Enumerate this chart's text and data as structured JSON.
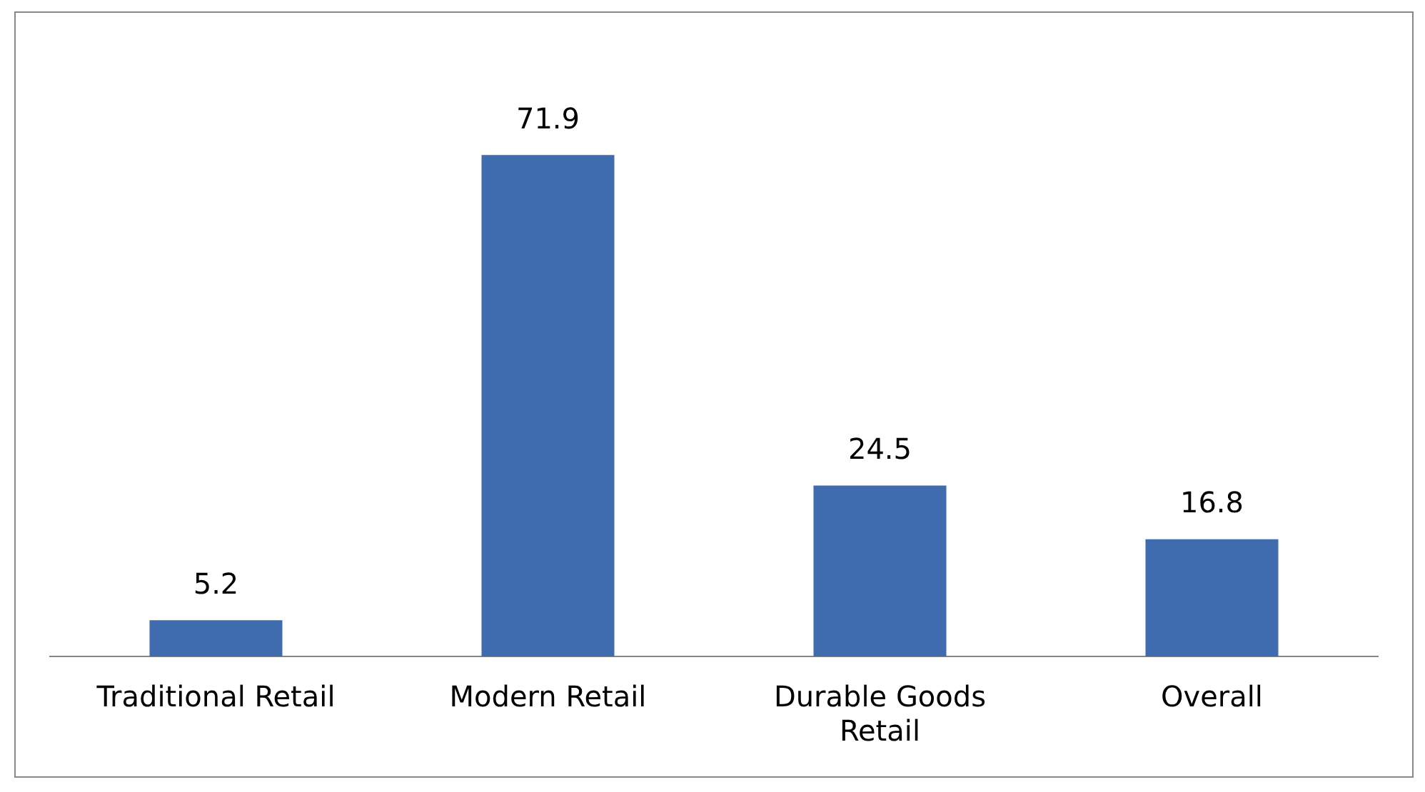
{
  "chart_data": {
    "type": "bar",
    "categories": [
      "Traditional Retail",
      "Modern Retail",
      "Durable Goods Retail",
      "Overall"
    ],
    "values": [
      5.2,
      71.9,
      24.5,
      16.8
    ],
    "color": "#3f6baf",
    "data_labels": true
  }
}
